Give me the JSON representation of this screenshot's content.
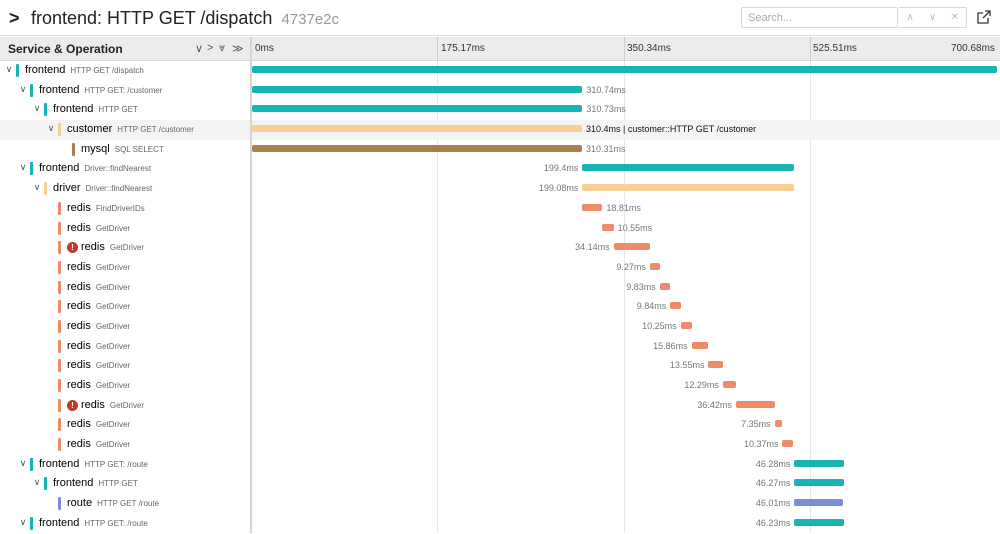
{
  "header": {
    "trace_name": "frontend: HTTP GET /dispatch",
    "trace_id": "4737e2c",
    "search_placeholder": "Search...",
    "nav_prev": "∧",
    "nav_next": "∨",
    "nav_clear": "✕"
  },
  "columns": {
    "service_operation": "Service & Operation",
    "controls": [
      "∨",
      ">",
      "⩔",
      "≫"
    ],
    "ticks": [
      "0ms",
      "175.17ms",
      "350.34ms",
      "525.51ms",
      "700.68ms"
    ]
  },
  "colors": {
    "frontend": "#18b3b3",
    "customer": "#f8cf95",
    "mysql": "#ad7d52",
    "driver": "#f8cf95",
    "redis": "#ee8b6b",
    "route": "#7a8ed8",
    "error": "#c0392b"
  },
  "spans": [
    {
      "service": "frontend",
      "operation": "HTTP GET /dispatch",
      "depth": 0,
      "toggle": "∨",
      "start": 0,
      "duration": 700.68,
      "label": "",
      "label_side": "right",
      "error": false
    },
    {
      "service": "frontend",
      "operation": "HTTP GET: /customer",
      "depth": 1,
      "toggle": "∨",
      "start": 0,
      "duration": 310.74,
      "label": "310.74ms",
      "label_side": "right",
      "error": false
    },
    {
      "service": "frontend",
      "operation": "HTTP GET",
      "depth": 2,
      "toggle": "∨",
      "start": 0,
      "duration": 310.73,
      "label": "310.73ms",
      "label_side": "right",
      "error": false
    },
    {
      "service": "customer",
      "operation": "HTTP GET /customer",
      "depth": 3,
      "toggle": "∨",
      "start": 0,
      "duration": 310.4,
      "label": "310.4ms | customer::HTTP GET /customer",
      "label_side": "right",
      "error": false,
      "highlight": true
    },
    {
      "service": "mysql",
      "operation": "SQL SELECT",
      "depth": 4,
      "toggle": "",
      "start": 0,
      "duration": 310.31,
      "label": "310.31ms",
      "label_side": "right",
      "error": false
    },
    {
      "service": "frontend",
      "operation": "Driver::findNearest",
      "depth": 1,
      "toggle": "∨",
      "start": 310.74,
      "duration": 199.4,
      "label": "199.4ms",
      "label_side": "left",
      "error": false
    },
    {
      "service": "driver",
      "operation": "Driver::findNearest",
      "depth": 2,
      "toggle": "∨",
      "start": 310.74,
      "duration": 199.08,
      "label": "199.08ms",
      "label_side": "left",
      "error": false
    },
    {
      "service": "redis",
      "operation": "FindDriverIDs",
      "depth": 3,
      "toggle": "",
      "start": 310.74,
      "duration": 18.81,
      "label": "18.81ms",
      "label_side": "right",
      "error": false
    },
    {
      "service": "redis",
      "operation": "GetDriver",
      "depth": 3,
      "toggle": "",
      "start": 329.55,
      "duration": 10.55,
      "label": "10.55ms",
      "label_side": "right",
      "error": false
    },
    {
      "service": "redis",
      "operation": "GetDriver",
      "depth": 3,
      "toggle": "",
      "start": 340.1,
      "duration": 34.14,
      "label": "34.14ms",
      "label_side": "left",
      "error": true
    },
    {
      "service": "redis",
      "operation": "GetDriver",
      "depth": 3,
      "toggle": "",
      "start": 374.24,
      "duration": 9.27,
      "label": "9.27ms",
      "label_side": "left",
      "error": false
    },
    {
      "service": "redis",
      "operation": "GetDriver",
      "depth": 3,
      "toggle": "",
      "start": 383.51,
      "duration": 9.83,
      "label": "9.83ms",
      "label_side": "left",
      "error": false
    },
    {
      "service": "redis",
      "operation": "GetDriver",
      "depth": 3,
      "toggle": "",
      "start": 393.34,
      "duration": 9.84,
      "label": "9.84ms",
      "label_side": "left",
      "error": false
    },
    {
      "service": "redis",
      "operation": "GetDriver",
      "depth": 3,
      "toggle": "",
      "start": 403.18,
      "duration": 10.25,
      "label": "10.25ms",
      "label_side": "left",
      "error": false
    },
    {
      "service": "redis",
      "operation": "GetDriver",
      "depth": 3,
      "toggle": "",
      "start": 413.43,
      "duration": 15.86,
      "label": "15.86ms",
      "label_side": "left",
      "error": false
    },
    {
      "service": "redis",
      "operation": "GetDriver",
      "depth": 3,
      "toggle": "",
      "start": 429.29,
      "duration": 13.55,
      "label": "13.55ms",
      "label_side": "left",
      "error": false
    },
    {
      "service": "redis",
      "operation": "GetDriver",
      "depth": 3,
      "toggle": "",
      "start": 442.84,
      "duration": 12.29,
      "label": "12.29ms",
      "label_side": "left",
      "error": false
    },
    {
      "service": "redis",
      "operation": "GetDriver",
      "depth": 3,
      "toggle": "",
      "start": 455.13,
      "duration": 36.42,
      "label": "36.42ms",
      "label_side": "left",
      "error": true
    },
    {
      "service": "redis",
      "operation": "GetDriver",
      "depth": 3,
      "toggle": "",
      "start": 491.55,
      "duration": 7.35,
      "label": "7.35ms",
      "label_side": "left",
      "error": false
    },
    {
      "service": "redis",
      "operation": "GetDriver",
      "depth": 3,
      "toggle": "",
      "start": 498.9,
      "duration": 10.37,
      "label": "10.37ms",
      "label_side": "left",
      "error": false
    },
    {
      "service": "frontend",
      "operation": "HTTP GET: /route",
      "depth": 1,
      "toggle": "∨",
      "start": 510.14,
      "duration": 46.28,
      "label": "46.28ms",
      "label_side": "left",
      "error": false
    },
    {
      "service": "frontend",
      "operation": "HTTP GET",
      "depth": 2,
      "toggle": "∨",
      "start": 510.14,
      "duration": 46.27,
      "label": "46.27ms",
      "label_side": "left",
      "error": false
    },
    {
      "service": "route",
      "operation": "HTTP GET /route",
      "depth": 3,
      "toggle": "",
      "start": 510.14,
      "duration": 46.01,
      "label": "46.01ms",
      "label_side": "left",
      "error": false
    },
    {
      "service": "frontend",
      "operation": "HTTP GET: /route",
      "depth": 1,
      "toggle": "∨",
      "start": 510.14,
      "duration": 46.23,
      "label": "46.23ms",
      "label_side": "left",
      "error": false
    }
  ]
}
